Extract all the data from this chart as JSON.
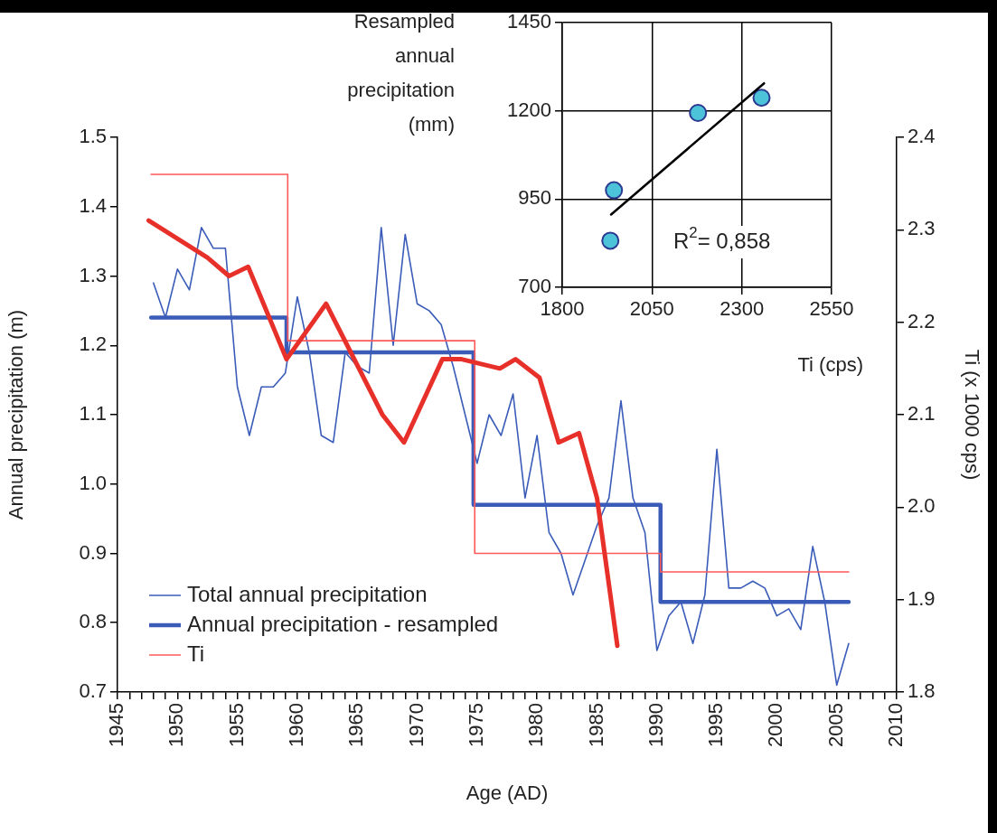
{
  "chart_data": [
    {
      "type": "line",
      "xlabel": "Age (AD)",
      "ylabel": "Annual precipitation (m)",
      "y2label": "Ti (x 1000 cps)",
      "xlim": [
        1945,
        2010
      ],
      "xticks": [
        1945,
        {
          "value": 1946,
          "label": null
        },
        {
          "value": 1947,
          "label": null
        },
        {
          "value": 1948,
          "label": null
        },
        {
          "value": 1949,
          "label": null
        },
        1950,
        {
          "value": 1951,
          "label": null
        },
        {
          "value": 1952,
          "label": null
        },
        {
          "value": 1953,
          "label": null
        },
        {
          "value": 1954,
          "label": null
        },
        1955,
        {
          "value": 1956,
          "label": null
        },
        {
          "value": 1957,
          "label": null
        },
        {
          "value": 1958,
          "label": null
        },
        {
          "value": 1959,
          "label": null
        },
        1960,
        {
          "value": 1961,
          "label": null
        },
        {
          "value": 1962,
          "label": null
        },
        {
          "value": 1963,
          "label": null
        },
        {
          "value": 1964,
          "label": null
        },
        1965,
        {
          "value": 1966,
          "label": null
        },
        {
          "value": 1967,
          "label": null
        },
        {
          "value": 1968,
          "label": null
        },
        {
          "value": 1969,
          "label": null
        },
        1970,
        {
          "value": 1971,
          "label": null
        },
        {
          "value": 1972,
          "label": null
        },
        {
          "value": 1973,
          "label": null
        },
        {
          "value": 1974,
          "label": null
        },
        1975,
        {
          "value": 1976,
          "label": null
        },
        {
          "value": 1977,
          "label": null
        },
        {
          "value": 1978,
          "label": null
        },
        {
          "value": 1979,
          "label": null
        },
        1980,
        {
          "value": 1981,
          "label": null
        },
        {
          "value": 1982,
          "label": null
        },
        {
          "value": 1983,
          "label": null
        },
        {
          "value": 1984,
          "label": null
        },
        1985,
        {
          "value": 1986,
          "label": null
        },
        {
          "value": 1987,
          "label": null
        },
        {
          "value": 1988,
          "label": null
        },
        {
          "value": 1989,
          "label": null
        },
        1990,
        {
          "value": 1991,
          "label": null
        },
        {
          "value": 1992,
          "label": null
        },
        {
          "value": 1993,
          "label": null
        },
        {
          "value": 1994,
          "label": null
        },
        1995,
        {
          "value": 1996,
          "label": null
        },
        {
          "value": 1997,
          "label": null
        },
        {
          "value": 1998,
          "label": null
        },
        {
          "value": 1999,
          "label": null
        },
        2000,
        {
          "value": 2001,
          "label": null
        },
        {
          "value": 2002,
          "label": null
        },
        {
          "value": 2003,
          "label": null
        },
        {
          "value": 2004,
          "label": null
        },
        2005,
        {
          "value": 2006,
          "label": null
        },
        {
          "value": 2007,
          "label": null
        },
        {
          "value": 2008,
          "label": null
        },
        {
          "value": 2009,
          "label": null
        },
        2010
      ],
      "ylim": [
        0.7,
        1.5
      ],
      "yticks": [
        0.7,
        0.8,
        0.9,
        {
          "value": 1.0,
          "label": "1.0"
        },
        1.1,
        1.2,
        1.3,
        1.4,
        1.5
      ],
      "y2lim": [
        1.8,
        2.4
      ],
      "y2ticks": [
        1.8,
        1.9,
        {
          "value": 2.0,
          "label": "2.0"
        },
        2.1,
        2.2,
        2.3,
        2.4
      ],
      "grid": false,
      "legend": "bottom left",
      "series": [
        {
          "name": "Total annual precipitation",
          "color": "#3a5cb8",
          "x": [
            1948,
            1949,
            1950,
            1951,
            1952,
            1953,
            1954,
            1955,
            1956,
            1957,
            1958,
            1959,
            1960,
            1961,
            1962,
            1963,
            1964,
            1965,
            1966,
            1967,
            1968,
            1969,
            1970,
            1971,
            1972,
            1973,
            1974,
            1975,
            1976,
            1977,
            1978,
            1979,
            1980,
            1981,
            1982,
            1983,
            1984,
            1985,
            1986,
            1987,
            1988,
            1989,
            1990,
            1991,
            1992,
            1993,
            1994,
            1995,
            1996,
            1997,
            1998,
            1999,
            2000,
            2001,
            2002,
            2003,
            2004,
            2005,
            2006
          ],
          "values": [
            1.29,
            1.24,
            1.31,
            1.28,
            1.37,
            1.34,
            1.34,
            1.14,
            1.07,
            1.14,
            1.14,
            1.16,
            1.27,
            1.19,
            1.07,
            1.06,
            1.19,
            1.17,
            1.16,
            1.37,
            1.2,
            1.36,
            1.26,
            1.25,
            1.23,
            1.17,
            1.1,
            1.03,
            1.1,
            1.07,
            1.13,
            0.98,
            1.07,
            0.93,
            0.9,
            0.84,
            0.89,
            0.94,
            0.98,
            1.12,
            0.98,
            0.93,
            0.76,
            0.81,
            0.83,
            0.77,
            0.84,
            1.05,
            0.85,
            0.85,
            0.86,
            0.85,
            0.81,
            0.82,
            0.79,
            0.91,
            0.83,
            0.71,
            0.77
          ]
        },
        {
          "name": "Annual precipitation - resampled",
          "type": "step",
          "color": "#3a5cb8",
          "x": [
            1947.8,
            1959.1,
            1974.7,
            1990.3,
            2006
          ],
          "values": [
            1.24,
            1.19,
            0.97,
            0.83,
            0.83
          ]
        },
        {
          "name": "Ti",
          "type": "step",
          "axis": "y2",
          "color": "#ff5a5a",
          "x": [
            1947.8,
            1959.2,
            1974.8,
            1990.3,
            2006
          ],
          "values": [
            2.36,
            2.18,
            1.95,
            1.93,
            1.93
          ]
        },
        {
          "type": "line",
          "axis": "y2",
          "color": "#e8302a",
          "x": [
            1947.6,
            1952.5,
            1954.3,
            1955.9,
            1959.1,
            1962.4,
            1967.1,
            1968.9,
            1972.1,
            1973.7,
            1976.9,
            1978.2,
            1980.2,
            1981.8,
            1983.5,
            1985,
            1986.7
          ],
          "values": [
            2.31,
            2.27,
            2.25,
            2.26,
            2.16,
            2.22,
            2.1,
            2.07,
            2.16,
            2.16,
            2.15,
            2.16,
            2.14,
            2.07,
            2.08,
            2.01,
            1.85
          ]
        }
      ]
    },
    {
      "type": "scatter",
      "xlabel": "Ti (cps)",
      "ylabel": "Resampled annual precipitation (mm)",
      "xlim": [
        1800,
        2550
      ],
      "xticks": [
        1800,
        2050,
        2300,
        2550
      ],
      "ylim": [
        700,
        1450
      ],
      "yticks": [
        700,
        950,
        1200,
        1450
      ],
      "grid": true,
      "annotations": [
        "R$^{2}$= 0,858"
      ],
      "series": [
        {
          "color": "#4cc3d9",
          "marker": "circle",
          "x": [
            1934,
            1944,
            2178,
            2355
          ],
          "values": [
            832,
            975,
            1194,
            1237
          ]
        },
        {
          "type": "line",
          "color": "#000000",
          "marker": "none",
          "x": [
            1936,
            2362
          ],
          "values": [
            906,
            1278
          ]
        }
      ]
    }
  ]
}
